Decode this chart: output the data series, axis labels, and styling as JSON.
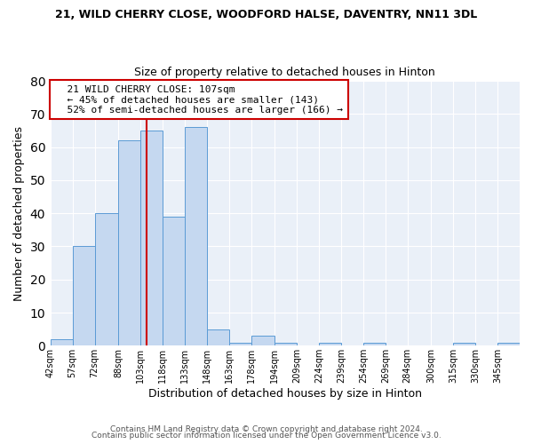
{
  "title": "21, WILD CHERRY CLOSE, WOODFORD HALSE, DAVENTRY, NN11 3DL",
  "subtitle": "Size of property relative to detached houses in Hinton",
  "xlabel": "Distribution of detached houses by size in Hinton",
  "ylabel": "Number of detached properties",
  "bin_edges": [
    42,
    57,
    72,
    88,
    103,
    118,
    133,
    148,
    163,
    178,
    194,
    209,
    224,
    239,
    254,
    269,
    284,
    300,
    315,
    330,
    345
  ],
  "bar_heights": [
    2,
    30,
    40,
    62,
    65,
    39,
    66,
    5,
    1,
    3,
    1,
    0,
    1,
    0,
    1,
    0,
    0,
    0,
    1,
    0,
    1
  ],
  "bar_color": "#c5d8f0",
  "bar_edgecolor": "#5b9bd5",
  "tick_labels": [
    "42sqm",
    "57sqm",
    "72sqm",
    "88sqm",
    "103sqm",
    "118sqm",
    "133sqm",
    "148sqm",
    "163sqm",
    "178sqm",
    "194sqm",
    "209sqm",
    "224sqm",
    "239sqm",
    "254sqm",
    "269sqm",
    "284sqm",
    "300sqm",
    "315sqm",
    "330sqm",
    "345sqm"
  ],
  "property_line_x": 107,
  "property_line_color": "#cc0000",
  "ylim": [
    0,
    80
  ],
  "yticks": [
    0,
    10,
    20,
    30,
    40,
    50,
    60,
    70,
    80
  ],
  "annotation_title": "21 WILD CHERRY CLOSE: 107sqm",
  "annotation_line1": "← 45% of detached houses are smaller (143)",
  "annotation_line2": "52% of semi-detached houses are larger (166) →",
  "annotation_box_color": "#cc0000",
  "bg_color": "#eaf0f8",
  "footer1": "Contains HM Land Registry data © Crown copyright and database right 2024.",
  "footer2": "Contains public sector information licensed under the Open Government Licence v3.0."
}
